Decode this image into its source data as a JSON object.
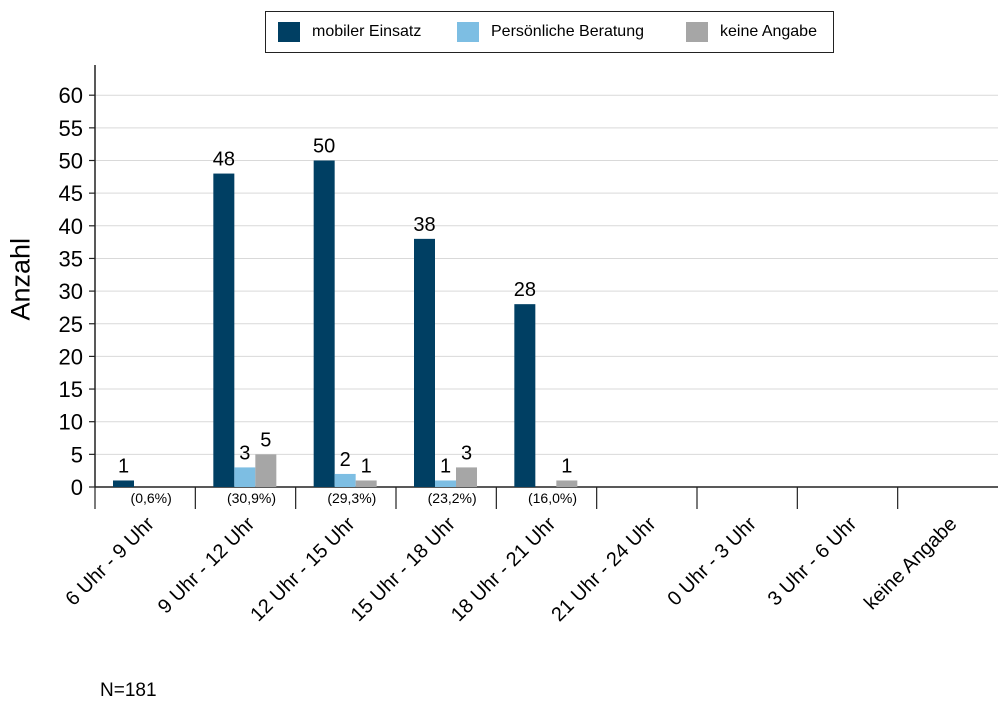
{
  "chart_data": {
    "type": "bar",
    "title": "",
    "xlabel": "",
    "ylabel": "Anzahl",
    "ylim": [
      0,
      60
    ],
    "ytick_step": 5,
    "grid": true,
    "legend_position": "top-center",
    "categories": [
      "6 Uhr - 9 Uhr",
      "9 Uhr - 12 Uhr",
      "12 Uhr - 15 Uhr",
      "15 Uhr - 18 Uhr",
      "18 Uhr - 21 Uhr",
      "21 Uhr - 24 Uhr",
      "0 Uhr - 3 Uhr",
      "3 Uhr - 6 Uhr",
      "keine Angabe"
    ],
    "category_percent_labels": [
      "(0,6%)",
      "(30,9%)",
      "(29,3%)",
      "(23,2%)",
      "(16,0%)",
      "",
      "",
      "",
      ""
    ],
    "series": [
      {
        "name": "mobiler Einsatz",
        "color": "#003f63",
        "values": [
          1,
          48,
          50,
          38,
          28,
          0,
          0,
          0,
          0
        ]
      },
      {
        "name": "Persönliche Beratung",
        "color": "#7dbee3",
        "values": [
          0,
          3,
          2,
          1,
          0,
          0,
          0,
          0,
          0
        ]
      },
      {
        "name": "keine Angabe",
        "color": "#a6a6a6",
        "values": [
          0,
          5,
          1,
          3,
          1,
          0,
          0,
          0,
          0
        ]
      }
    ],
    "footnote": "N=181"
  }
}
